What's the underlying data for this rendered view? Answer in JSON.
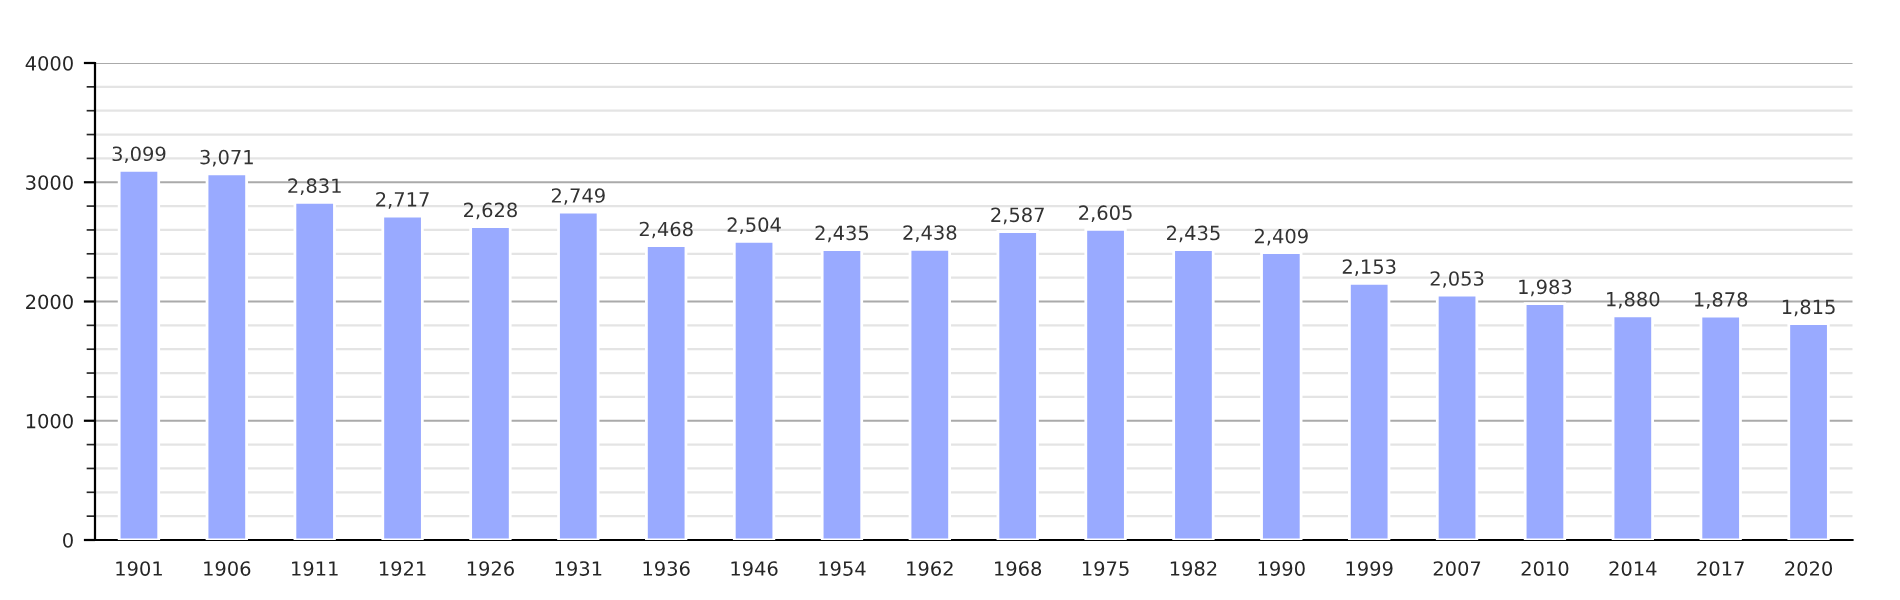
{
  "chart_data": {
    "type": "bar",
    "categories": [
      "1901",
      "1906",
      "1911",
      "1921",
      "1926",
      "1931",
      "1936",
      "1946",
      "1954",
      "1962",
      "1968",
      "1975",
      "1982",
      "1990",
      "1999",
      "2007",
      "2010",
      "2014",
      "2017",
      "2020"
    ],
    "values": [
      3099,
      3071,
      2831,
      2717,
      2628,
      2749,
      2468,
      2504,
      2435,
      2438,
      2587,
      2605,
      2435,
      2409,
      2153,
      2053,
      1983,
      1880,
      1878,
      1815
    ],
    "value_labels": [
      "3,099",
      "3,071",
      "2,831",
      "2,717",
      "2,628",
      "2,749",
      "2,468",
      "2,504",
      "2,435",
      "2,438",
      "2,587",
      "2,605",
      "2,435",
      "2,409",
      "2,153",
      "2,053",
      "1,983",
      "1,880",
      "1,878",
      "1,815"
    ],
    "color": "#99aaff",
    "ylim": [
      0,
      4000
    ],
    "yticks": [
      0,
      1000,
      2000,
      3000,
      4000
    ],
    "grid": "y"
  }
}
